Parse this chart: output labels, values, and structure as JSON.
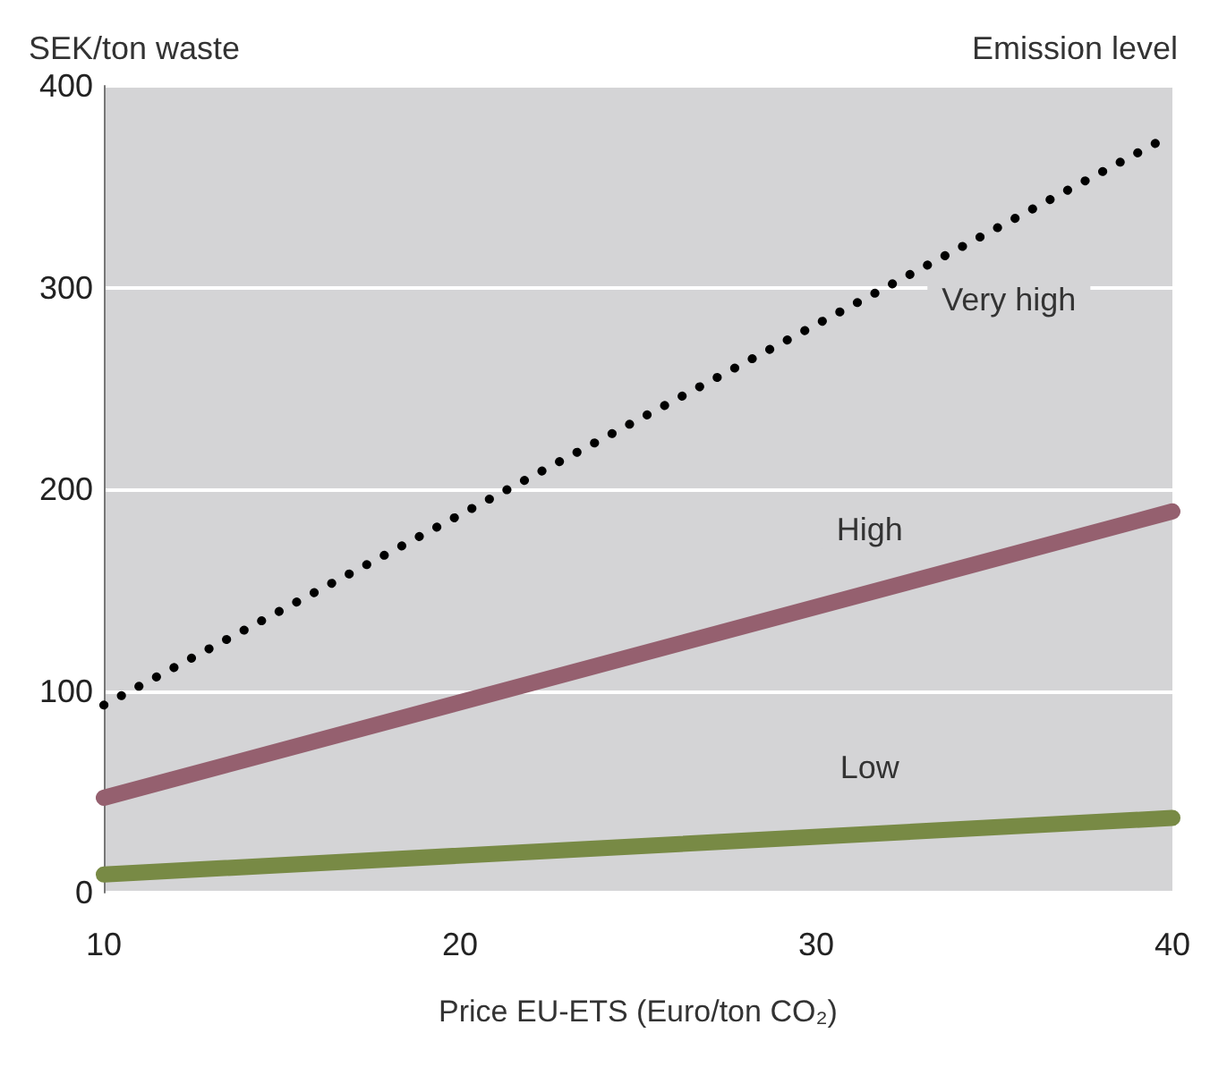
{
  "chart_data": {
    "type": "line",
    "ylabel": "SEK/ton waste",
    "xlabel": "Price EU-ETS (Euro/ton CO₂)",
    "legend_title": "Emission level",
    "x": [
      10,
      40
    ],
    "series": [
      {
        "name": "Very high",
        "color": "#000000",
        "values": [
          93,
          376
        ],
        "line_style": "dotted"
      },
      {
        "name": "High",
        "color": "#95606f",
        "values": [
          47,
          189
        ],
        "line_style": "solid"
      },
      {
        "name": "Low",
        "color": "#788a45",
        "values": [
          9,
          37
        ],
        "line_style": "solid"
      }
    ],
    "xlim": [
      10,
      40
    ],
    "xticks": [
      10,
      20,
      30,
      40
    ],
    "ylim": [
      0,
      400
    ],
    "yticks": [
      0,
      100,
      200,
      300,
      400
    ],
    "grid": "y",
    "marker": "none",
    "legend": false
  }
}
